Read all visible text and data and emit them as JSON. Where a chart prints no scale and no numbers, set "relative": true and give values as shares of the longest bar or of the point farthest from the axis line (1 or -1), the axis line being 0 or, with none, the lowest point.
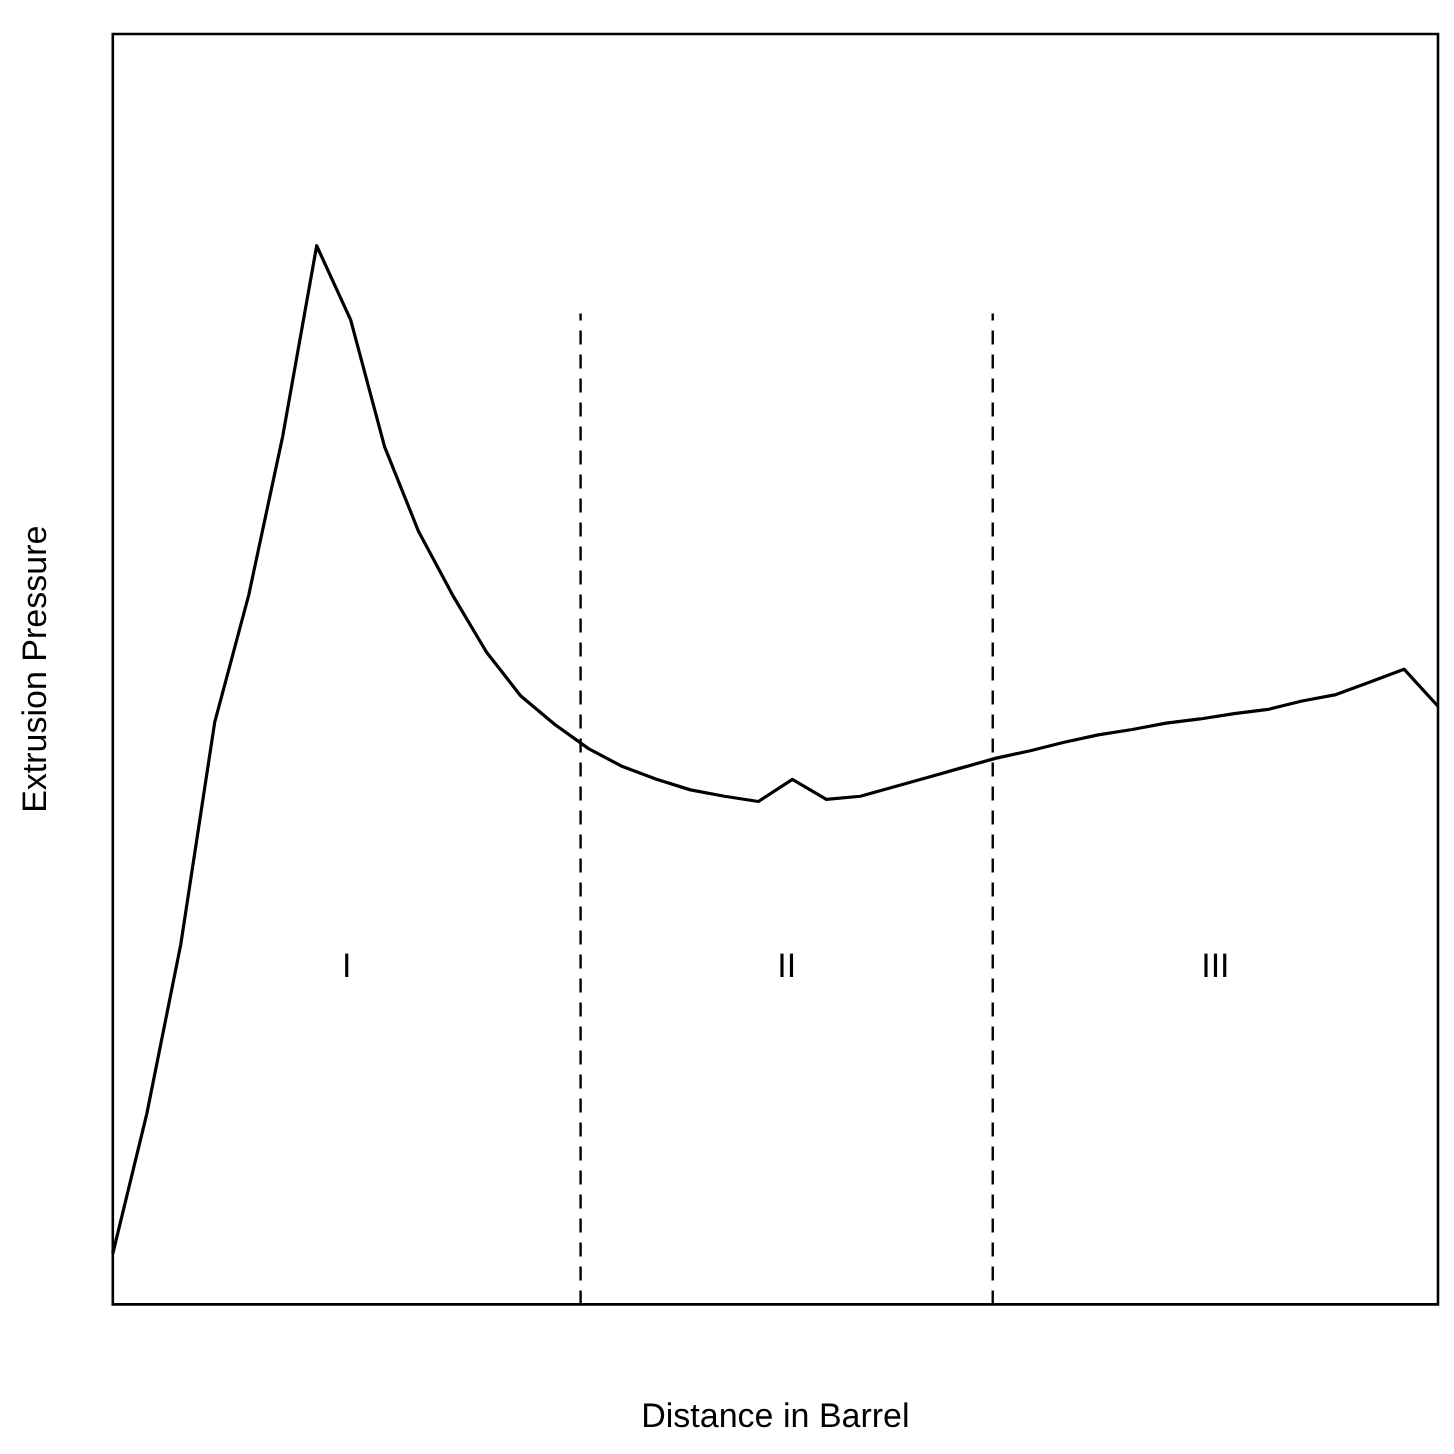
{
  "chart_data": {
    "type": "line",
    "relative": true,
    "xlabel": "Distance in Barrel",
    "ylabel": "Extrusion Pressure",
    "legend": false,
    "marker": "none",
    "line_style": "solid",
    "categories": [
      null,
      null,
      null,
      null,
      null,
      null,
      null,
      null,
      null,
      null,
      null,
      null,
      null,
      null,
      null,
      null,
      null,
      null,
      null,
      null,
      null,
      null,
      null,
      null,
      null,
      null,
      null,
      null,
      null,
      null,
      null,
      null,
      null,
      null,
      null,
      null,
      null,
      null,
      null,
      null
    ],
    "series": [
      {
        "color": "#000000",
        "values": [
          0.048,
          0.18,
          0.34,
          0.55,
          0.67,
          0.82,
          1,
          0.93,
          0.81,
          0.73,
          0.67,
          0.616,
          0.575,
          0.548,
          0.525,
          0.508,
          0.496,
          0.486,
          0.48,
          0.475,
          0.496,
          0.477,
          0.48,
          0.489,
          0.498,
          0.507,
          0.516,
          0.523,
          0.531,
          0.538,
          0.543,
          0.549,
          0.553,
          0.558,
          0.562,
          0.57,
          0.576,
          0.588,
          0.6,
          0.565
        ]
      }
    ],
    "annotations": [
      "I",
      "II",
      "III"
    ]
  }
}
